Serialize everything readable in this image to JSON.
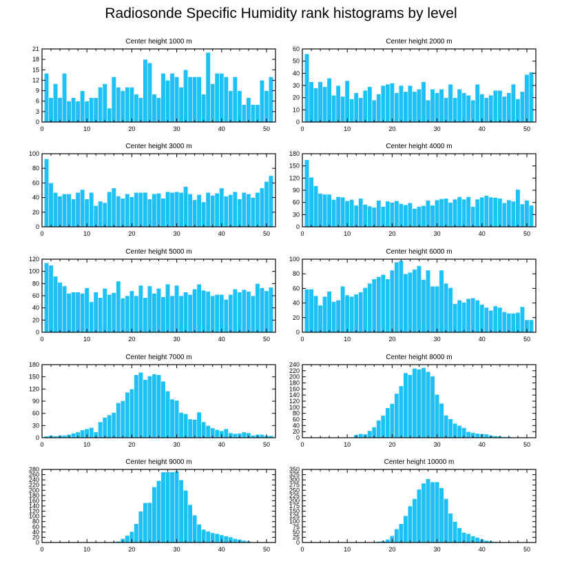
{
  "title": "Radiosonde Specific Humidity rank histograms by level",
  "colors": {
    "bar": "#1ec1f7",
    "bar_edge": "#ffffff",
    "axis": "#000000"
  },
  "chart_data": [
    {
      "type": "bar",
      "title": "Center height 1000 m",
      "xlabel": "",
      "ylabel": "",
      "xlim": [
        0,
        52
      ],
      "ylim": [
        0,
        21
      ],
      "xticks": [
        0,
        10,
        20,
        30,
        40,
        50
      ],
      "yticks": [
        0,
        3,
        6,
        9,
        12,
        15,
        18,
        21
      ],
      "x": [
        1,
        2,
        3,
        4,
        5,
        6,
        7,
        8,
        9,
        10,
        11,
        12,
        13,
        14,
        15,
        16,
        17,
        18,
        19,
        20,
        21,
        22,
        23,
        24,
        25,
        26,
        27,
        28,
        29,
        30,
        31,
        32,
        33,
        34,
        35,
        36,
        37,
        38,
        39,
        40,
        41,
        42,
        43,
        44,
        45,
        46,
        47,
        48,
        49,
        50,
        51
      ],
      "values": [
        14,
        7,
        11,
        7,
        14,
        6,
        7,
        6,
        9,
        6,
        7,
        7,
        10,
        11,
        4,
        13,
        10,
        9,
        10,
        10,
        8,
        7,
        18,
        17,
        8,
        7,
        14,
        12,
        14,
        13,
        10,
        15,
        13,
        13,
        13,
        8,
        20,
        11,
        14,
        14,
        13,
        9,
        13,
        9,
        5,
        7,
        5,
        5,
        12,
        9,
        13
      ]
    },
    {
      "type": "bar",
      "title": "Center height 2000 m",
      "xlabel": "",
      "ylabel": "",
      "xlim": [
        0,
        52
      ],
      "ylim": [
        0,
        60
      ],
      "xticks": [
        0,
        10,
        20,
        30,
        40,
        50
      ],
      "yticks": [
        0,
        10,
        20,
        30,
        40,
        50,
        60
      ],
      "x": [
        1,
        2,
        3,
        4,
        5,
        6,
        7,
        8,
        9,
        10,
        11,
        12,
        13,
        14,
        15,
        16,
        17,
        18,
        19,
        20,
        21,
        22,
        23,
        24,
        25,
        26,
        27,
        28,
        29,
        30,
        31,
        32,
        33,
        34,
        35,
        36,
        37,
        38,
        39,
        40,
        41,
        42,
        43,
        44,
        45,
        46,
        47,
        48,
        49,
        50,
        51
      ],
      "values": [
        56,
        33,
        28,
        33,
        29,
        36,
        22,
        30,
        21,
        34,
        19,
        24,
        20,
        26,
        29,
        18,
        23,
        30,
        31,
        32,
        24,
        30,
        25,
        30,
        25,
        27,
        33,
        18,
        27,
        24,
        27,
        20,
        31,
        20,
        27,
        24,
        22,
        18,
        31,
        23,
        20,
        22,
        26,
        26,
        21,
        24,
        31,
        19,
        25,
        39,
        41
      ]
    },
    {
      "type": "bar",
      "title": "Center height 3000 m",
      "xlabel": "",
      "ylabel": "",
      "xlim": [
        0,
        52
      ],
      "ylim": [
        0,
        100
      ],
      "xticks": [
        0,
        10,
        20,
        30,
        40,
        50
      ],
      "yticks": [
        0,
        20,
        40,
        60,
        80,
        100
      ],
      "x": [
        1,
        2,
        3,
        4,
        5,
        6,
        7,
        8,
        9,
        10,
        11,
        12,
        13,
        14,
        15,
        16,
        17,
        18,
        19,
        20,
        21,
        22,
        23,
        24,
        25,
        26,
        27,
        28,
        29,
        30,
        31,
        32,
        33,
        34,
        35,
        36,
        37,
        38,
        39,
        40,
        41,
        42,
        43,
        44,
        45,
        46,
        47,
        48,
        49,
        50,
        51
      ],
      "values": [
        93,
        60,
        47,
        42,
        45,
        45,
        38,
        47,
        51,
        38,
        47,
        29,
        35,
        33,
        48,
        53,
        42,
        39,
        45,
        41,
        47,
        47,
        47,
        38,
        45,
        46,
        39,
        48,
        47,
        48,
        47,
        55,
        45,
        37,
        44,
        34,
        47,
        43,
        46,
        53,
        42,
        44,
        48,
        38,
        47,
        45,
        40,
        47,
        53,
        62,
        70
      ]
    },
    {
      "type": "bar",
      "title": "Center height 4000 m",
      "xlabel": "",
      "ylabel": "",
      "xlim": [
        0,
        52
      ],
      "ylim": [
        0,
        180
      ],
      "xticks": [
        0,
        10,
        20,
        30,
        40,
        50
      ],
      "yticks": [
        0,
        30,
        60,
        90,
        120,
        150,
        180
      ],
      "x": [
        1,
        2,
        3,
        4,
        5,
        6,
        7,
        8,
        9,
        10,
        11,
        12,
        13,
        14,
        15,
        16,
        17,
        18,
        19,
        20,
        21,
        22,
        23,
        24,
        25,
        26,
        27,
        28,
        29,
        30,
        31,
        32,
        33,
        34,
        35,
        36,
        37,
        38,
        39,
        40,
        41,
        42,
        43,
        44,
        45,
        46,
        47,
        48,
        49,
        50,
        51
      ],
      "values": [
        165,
        122,
        101,
        82,
        80,
        80,
        67,
        74,
        73,
        64,
        67,
        53,
        70,
        55,
        51,
        48,
        65,
        50,
        63,
        60,
        64,
        57,
        54,
        59,
        45,
        50,
        52,
        65,
        53,
        66,
        69,
        70,
        60,
        68,
        74,
        68,
        74,
        50,
        68,
        73,
        77,
        73,
        72,
        70,
        59,
        66,
        63,
        92,
        56,
        65,
        53
      ]
    },
    {
      "type": "bar",
      "title": "Center height 5000 m",
      "xlabel": "",
      "ylabel": "",
      "xlim": [
        0,
        52
      ],
      "ylim": [
        0,
        120
      ],
      "xticks": [
        0,
        10,
        20,
        30,
        40,
        50
      ],
      "yticks": [
        0,
        20,
        40,
        60,
        80,
        100,
        120
      ],
      "x": [
        1,
        2,
        3,
        4,
        5,
        6,
        7,
        8,
        9,
        10,
        11,
        12,
        13,
        14,
        15,
        16,
        17,
        18,
        19,
        20,
        21,
        22,
        23,
        24,
        25,
        26,
        27,
        28,
        29,
        30,
        31,
        32,
        33,
        34,
        35,
        36,
        37,
        38,
        39,
        40,
        41,
        42,
        43,
        44,
        45,
        46,
        47,
        48,
        49,
        50,
        51
      ],
      "values": [
        114,
        110,
        92,
        82,
        76,
        64,
        66,
        66,
        64,
        73,
        50,
        66,
        57,
        72,
        62,
        65,
        84,
        56,
        60,
        68,
        60,
        77,
        57,
        76,
        64,
        72,
        58,
        79,
        60,
        77,
        60,
        66,
        62,
        71,
        79,
        69,
        67,
        60,
        62,
        62,
        54,
        62,
        71,
        66,
        70,
        67,
        60,
        80,
        73,
        68,
        74
      ]
    },
    {
      "type": "bar",
      "title": "Center height 6000 m",
      "xlabel": "",
      "ylabel": "",
      "xlim": [
        0,
        52
      ],
      "ylim": [
        0,
        100
      ],
      "xticks": [
        0,
        10,
        20,
        30,
        40,
        50
      ],
      "yticks": [
        0,
        20,
        40,
        60,
        80,
        100
      ],
      "x": [
        1,
        2,
        3,
        4,
        5,
        6,
        7,
        8,
        9,
        10,
        11,
        12,
        13,
        14,
        15,
        16,
        17,
        18,
        19,
        20,
        21,
        22,
        23,
        24,
        25,
        26,
        27,
        28,
        29,
        30,
        31,
        32,
        33,
        34,
        35,
        36,
        37,
        38,
        39,
        40,
        41,
        42,
        43,
        44,
        45,
        46,
        47,
        48,
        49,
        50,
        51
      ],
      "values": [
        59,
        59,
        50,
        37,
        49,
        56,
        42,
        44,
        63,
        51,
        49,
        52,
        55,
        61,
        67,
        73,
        76,
        79,
        73,
        85,
        96,
        98,
        80,
        82,
        86,
        91,
        72,
        85,
        63,
        63,
        85,
        67,
        61,
        39,
        44,
        41,
        46,
        47,
        44,
        38,
        34,
        30,
        36,
        34,
        28,
        26,
        26,
        27,
        35,
        17,
        17
      ]
    },
    {
      "type": "bar",
      "title": "Center height 7000 m",
      "xlabel": "",
      "ylabel": "",
      "xlim": [
        0,
        52
      ],
      "ylim": [
        0,
        180
      ],
      "xticks": [
        0,
        10,
        20,
        30,
        40,
        50
      ],
      "yticks": [
        0,
        30,
        60,
        90,
        120,
        150,
        180
      ],
      "x": [
        1,
        2,
        3,
        4,
        5,
        6,
        7,
        8,
        9,
        10,
        11,
        12,
        13,
        14,
        15,
        16,
        17,
        18,
        19,
        20,
        21,
        22,
        23,
        24,
        25,
        26,
        27,
        28,
        29,
        30,
        31,
        32,
        33,
        34,
        35,
        36,
        37,
        38,
        39,
        40,
        41,
        42,
        43,
        44,
        45,
        46,
        47,
        48,
        49,
        50,
        51
      ],
      "values": [
        4,
        6,
        4,
        6,
        6,
        8,
        11,
        14,
        19,
        22,
        25,
        14,
        39,
        50,
        56,
        62,
        86,
        91,
        112,
        120,
        155,
        161,
        143,
        152,
        157,
        155,
        139,
        115,
        95,
        92,
        62,
        59,
        46,
        45,
        63,
        39,
        30,
        24,
        20,
        17,
        22,
        12,
        10,
        11,
        14,
        12,
        6,
        8,
        8,
        5,
        5
      ]
    },
    {
      "type": "bar",
      "title": "Center height 8000 m",
      "xlabel": "",
      "ylabel": "",
      "xlim": [
        0,
        52
      ],
      "ylim": [
        0,
        240
      ],
      "xticks": [
        0,
        10,
        20,
        30,
        40,
        50
      ],
      "yticks": [
        0,
        20,
        40,
        60,
        80,
        100,
        120,
        140,
        160,
        180,
        200,
        220,
        240
      ],
      "x": [
        1,
        2,
        3,
        4,
        5,
        6,
        7,
        8,
        9,
        10,
        11,
        12,
        13,
        14,
        15,
        16,
        17,
        18,
        19,
        20,
        21,
        22,
        23,
        24,
        25,
        26,
        27,
        28,
        29,
        30,
        31,
        32,
        33,
        34,
        35,
        36,
        37,
        38,
        39,
        40,
        41,
        42,
        43,
        44,
        45,
        46,
        47,
        48,
        49,
        50,
        51
      ],
      "values": [
        0,
        0,
        0,
        0,
        0,
        0,
        0,
        0,
        0,
        0,
        2,
        10,
        13,
        12,
        23,
        35,
        57,
        73,
        98,
        112,
        145,
        170,
        213,
        207,
        228,
        225,
        230,
        217,
        202,
        142,
        113,
        74,
        62,
        47,
        40,
        33,
        20,
        17,
        14,
        13,
        12,
        8,
        6,
        5,
        3,
        3,
        1,
        1,
        0,
        0,
        0
      ]
    },
    {
      "type": "bar",
      "title": "Center height 9000 m",
      "xlabel": "",
      "ylabel": "",
      "xlim": [
        0,
        52
      ],
      "ylim": [
        0,
        280
      ],
      "xticks": [
        0,
        10,
        20,
        30,
        40,
        50
      ],
      "yticks": [
        0,
        20,
        40,
        60,
        80,
        100,
        120,
        140,
        160,
        180,
        200,
        220,
        240,
        260,
        280
      ],
      "x": [
        1,
        2,
        3,
        4,
        5,
        6,
        7,
        8,
        9,
        10,
        11,
        12,
        13,
        14,
        15,
        16,
        17,
        18,
        19,
        20,
        21,
        22,
        23,
        24,
        25,
        26,
        27,
        28,
        29,
        30,
        31,
        32,
        33,
        34,
        35,
        36,
        37,
        38,
        39,
        40,
        41,
        42,
        43,
        44,
        45,
        46,
        47,
        48,
        49,
        50,
        51
      ],
      "values": [
        0,
        0,
        0,
        0,
        0,
        0,
        0,
        0,
        0,
        0,
        0,
        0,
        0,
        0,
        2,
        3,
        5,
        15,
        27,
        42,
        72,
        120,
        152,
        153,
        213,
        237,
        270,
        271,
        270,
        274,
        240,
        200,
        145,
        105,
        70,
        50,
        43,
        37,
        34,
        29,
        25,
        21,
        15,
        12,
        8,
        5,
        2,
        1,
        0,
        0,
        0
      ]
    },
    {
      "type": "bar",
      "title": "Center height 10000 m",
      "xlabel": "",
      "ylabel": "",
      "xlim": [
        0,
        52
      ],
      "ylim": [
        0,
        350
      ],
      "xticks": [
        0,
        10,
        20,
        30,
        40,
        50
      ],
      "yticks": [
        0,
        25,
        50,
        75,
        100,
        125,
        150,
        175,
        200,
        225,
        250,
        275,
        300,
        325,
        350
      ],
      "x": [
        1,
        2,
        3,
        4,
        5,
        6,
        7,
        8,
        9,
        10,
        11,
        12,
        13,
        14,
        15,
        16,
        17,
        18,
        19,
        20,
        21,
        22,
        23,
        24,
        25,
        26,
        27,
        28,
        29,
        30,
        31,
        32,
        33,
        34,
        35,
        36,
        37,
        38,
        39,
        40,
        41,
        42,
        43,
        44,
        45,
        46,
        47,
        48,
        49,
        50,
        51
      ],
      "values": [
        0,
        0,
        0,
        0,
        0,
        0,
        0,
        0,
        0,
        0,
        0,
        0,
        0,
        0,
        1,
        2,
        5,
        8,
        15,
        32,
        65,
        90,
        128,
        175,
        210,
        255,
        284,
        305,
        290,
        290,
        262,
        210,
        140,
        100,
        70,
        48,
        42,
        31,
        24,
        16,
        10,
        7,
        4,
        2,
        1,
        1,
        0,
        0,
        0,
        0,
        0
      ]
    }
  ]
}
